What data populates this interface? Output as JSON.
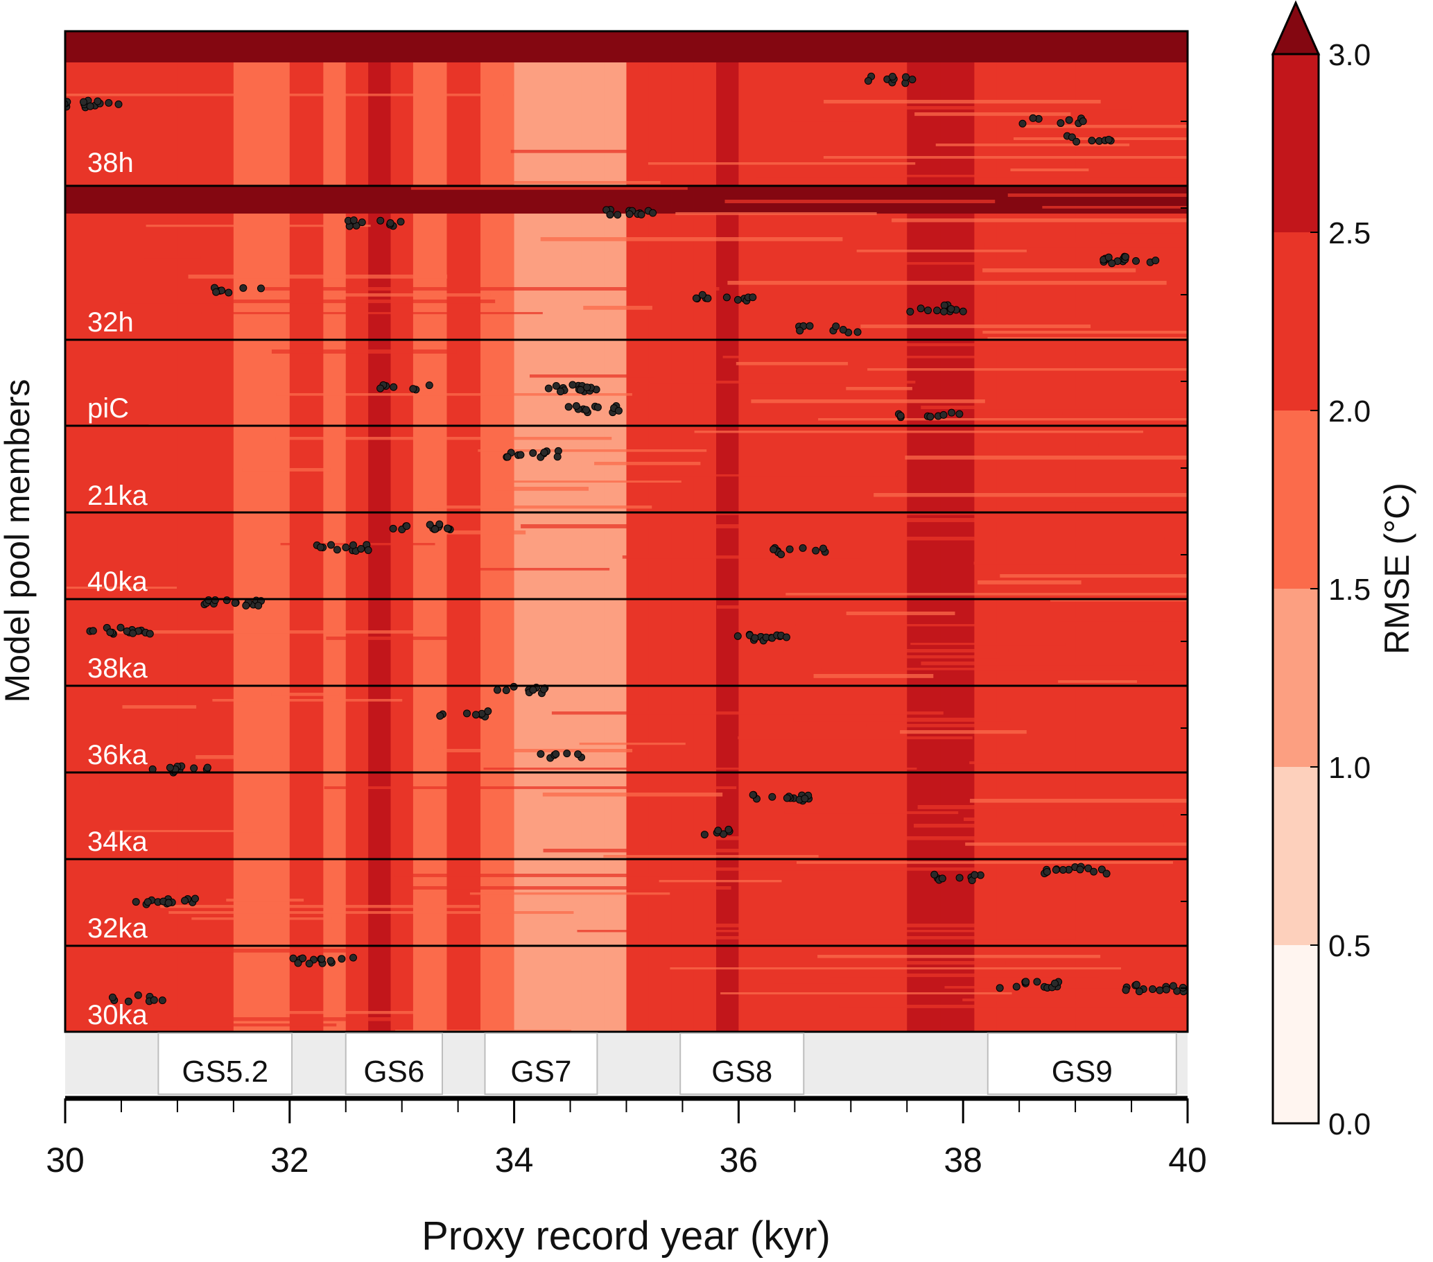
{
  "chart_data": {
    "type": "heatmap",
    "xlabel": "Proxy record year (kyr)",
    "ylabel": "Model pool members",
    "xlim": [
      30,
      40
    ],
    "x_ticks": [
      "30",
      "32",
      "34",
      "36",
      "38",
      "40"
    ],
    "row_labels": [
      "38h",
      "32h",
      "piC",
      "21ka",
      "40ka",
      "38ka",
      "36ka",
      "34ka",
      "32ka",
      "30ka"
    ],
    "stadial_labels": [
      "GS5.2",
      "GS6",
      "GS7",
      "GS8",
      "GS9"
    ],
    "stadials": [
      {
        "label": "GS5.2",
        "start": 30.83,
        "end": 32.02
      },
      {
        "label": "GS6",
        "start": 32.5,
        "end": 33.36
      },
      {
        "label": "GS7",
        "start": 33.74,
        "end": 34.74
      },
      {
        "label": "GS8",
        "start": 35.48,
        "end": 36.58
      },
      {
        "label": "GS9",
        "start": 38.22,
        "end": 39.9
      }
    ],
    "colorbar": {
      "label": "RMSE (°C)",
      "ticks": [
        "0.0",
        "0.5",
        "1.0",
        "1.5",
        "2.0",
        "2.5",
        "3.0"
      ],
      "levels": [
        0.0,
        0.5,
        1.0,
        1.5,
        2.0,
        2.5,
        3.0
      ],
      "colors": [
        "#fff5f0",
        "#fdd0bc",
        "#fc9f81",
        "#fb6b4b",
        "#e83528",
        "#c2161b",
        "#840711"
      ],
      "extend": "max"
    },
    "column_profile_x": [
      30.0,
      30.5,
      31.0,
      31.5,
      32.0,
      32.3,
      32.5,
      32.7,
      32.9,
      33.1,
      33.4,
      33.7,
      34.0,
      34.3,
      34.6,
      34.8,
      35.0,
      35.2,
      35.4,
      35.6,
      35.8,
      36.0,
      36.3,
      36.6,
      36.9,
      37.2,
      37.5,
      37.8,
      38.1,
      38.3,
      38.6,
      39.0,
      39.4,
      39.7,
      40.0
    ],
    "column_profile_rmse": [
      2.1,
      2.0,
      2.0,
      1.95,
      2.0,
      1.9,
      2.4,
      2.5,
      2.0,
      1.9,
      2.1,
      1.6,
      1.3,
      1.1,
      1.0,
      1.4,
      2.3,
      2.4,
      2.3,
      2.2,
      2.5,
      2.4,
      2.1,
      2.2,
      2.3,
      2.4,
      2.6,
      2.5,
      2.2,
      2.0,
      2.1,
      2.1,
      2.2,
      2.3,
      2.2
    ]
  }
}
